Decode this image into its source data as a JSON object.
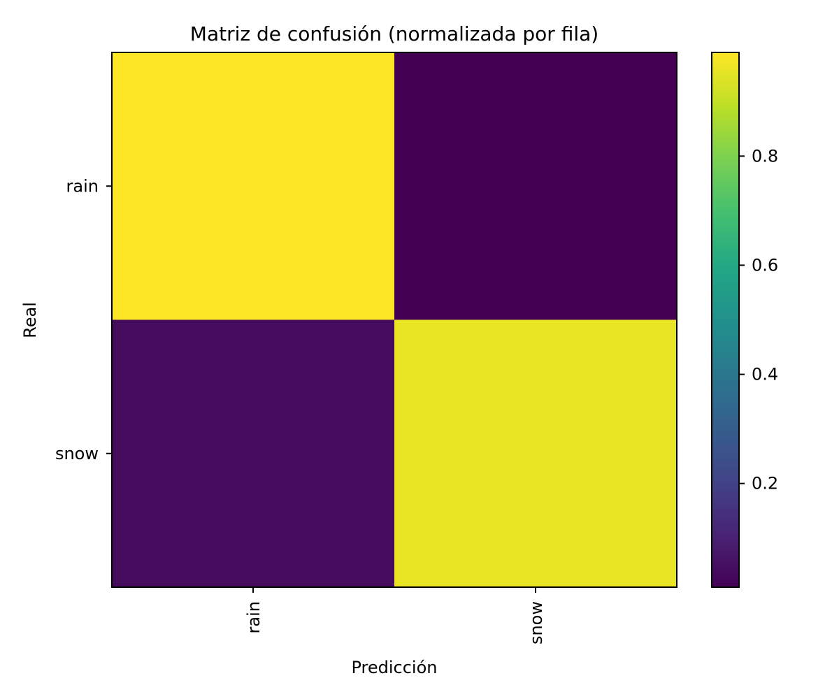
{
  "chart_data": {
    "type": "heatmap",
    "title": "Matriz de confusión (normalizada por fila)",
    "xlabel": "Predicción",
    "ylabel": "Real",
    "x_categories": [
      "rain",
      "snow"
    ],
    "y_categories": [
      "rain",
      "snow"
    ],
    "values": [
      [
        0.99,
        0.01
      ],
      [
        0.04,
        0.96
      ]
    ],
    "colormap": "viridis",
    "colorbar": {
      "range": [
        0.01,
        0.99
      ],
      "ticks": [
        0.2,
        0.4,
        0.6,
        0.8
      ],
      "tick_labels": [
        "0.2",
        "0.4",
        "0.6",
        "0.8"
      ]
    },
    "grid": false
  }
}
